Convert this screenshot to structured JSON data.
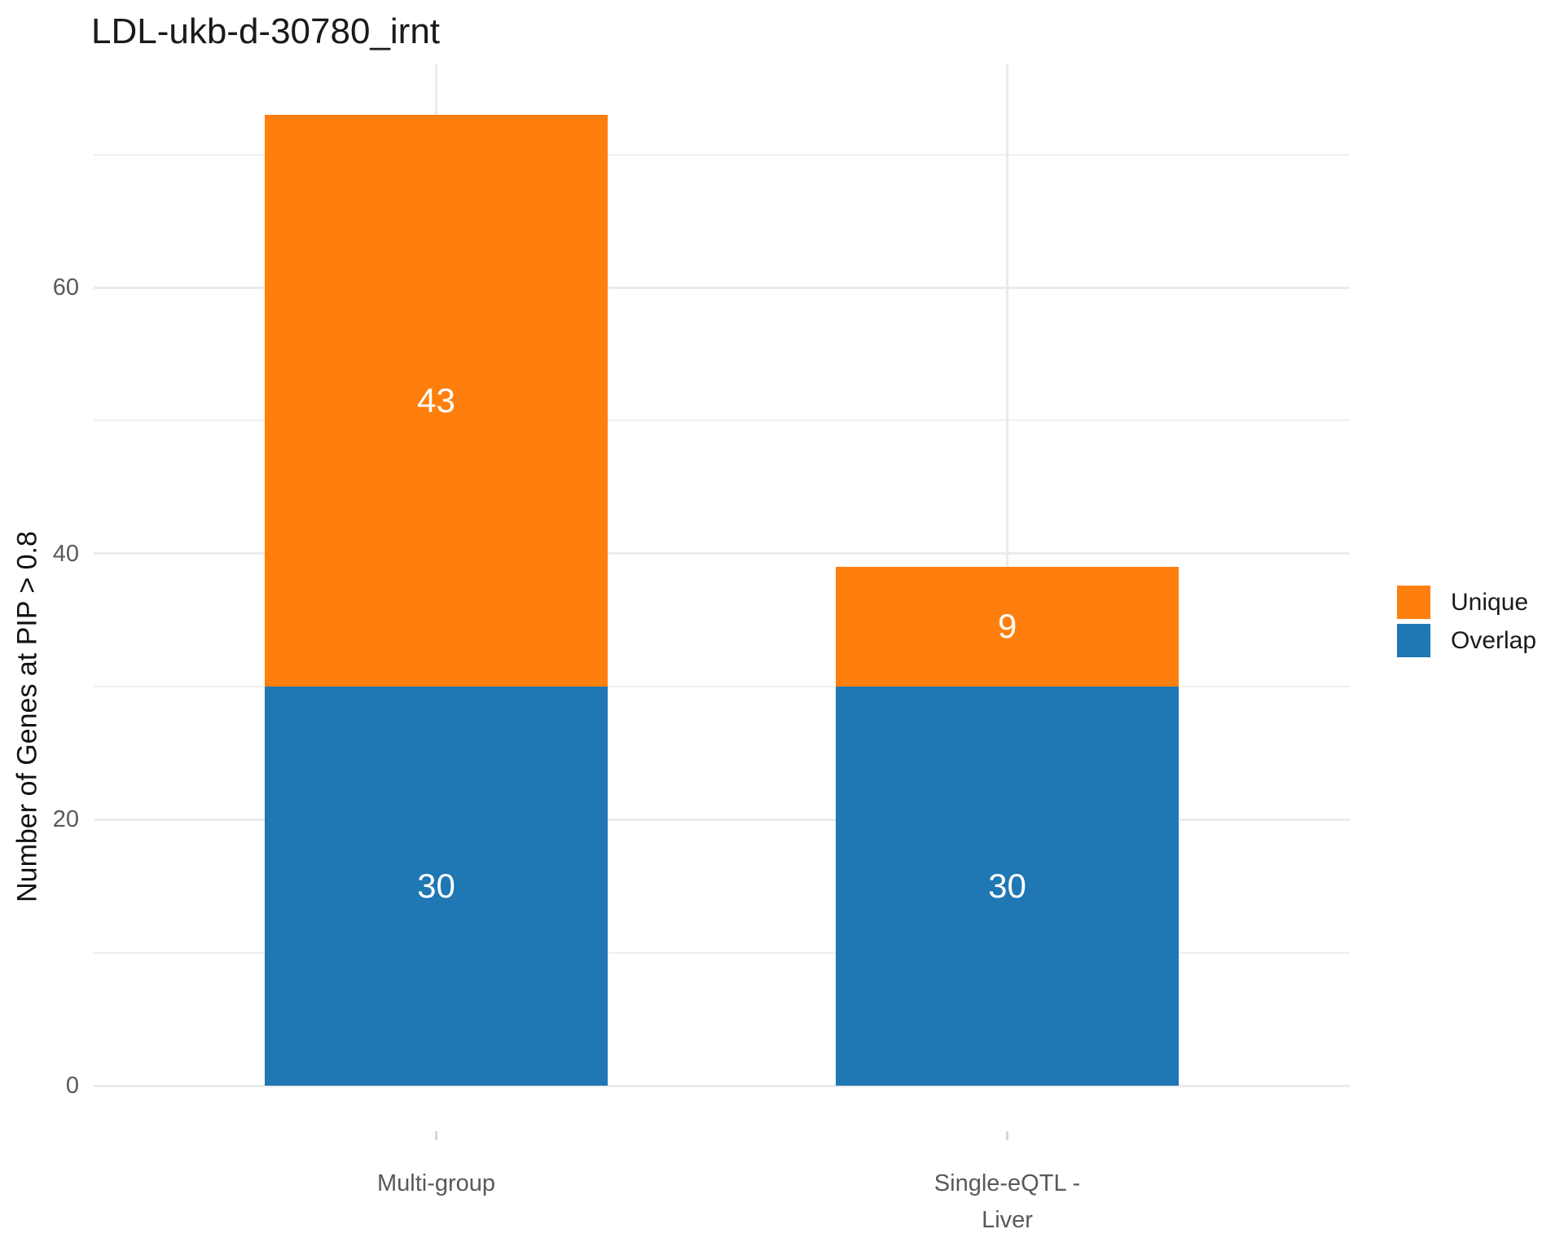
{
  "title": "LDL-ukb-d-30780_irnt",
  "chart_data": {
    "type": "bar",
    "stacked": true,
    "title": "LDL-ukb-d-30780_irnt",
    "xlabel": "",
    "ylabel": "Number of Genes at PIP > 0.8",
    "categories": [
      "Multi-group",
      "Single-eQTL -\nLiver"
    ],
    "series": [
      {
        "name": "Overlap",
        "color": "#1f77b4",
        "values": [
          30,
          30
        ]
      },
      {
        "name": "Unique",
        "color": "#ff7f0e",
        "values": [
          43,
          9
        ]
      }
    ],
    "totals": [
      73,
      39
    ],
    "bar_value_labels": [
      [
        "30",
        "43"
      ],
      [
        "30",
        "9"
      ]
    ],
    "ylim": [
      0,
      76.8
    ],
    "y_major_ticks": [
      0,
      20,
      40,
      60
    ],
    "y_minor_ticks": [
      10,
      30,
      50,
      70
    ],
    "grid": true,
    "legend_position": "right"
  },
  "legend": {
    "items": [
      {
        "label": "Unique",
        "color": "#ff7f0e"
      },
      {
        "label": "Overlap",
        "color": "#1f77b4"
      }
    ]
  },
  "colors": {
    "background": "#ffffff",
    "gridline": "#ebebeb",
    "axis_text": "#595959",
    "title_text": "#1a1a1a",
    "bar_label_text": "#ffffff",
    "unique_orange": "#ff7f0e",
    "overlap_blue": "#1f77b4"
  }
}
